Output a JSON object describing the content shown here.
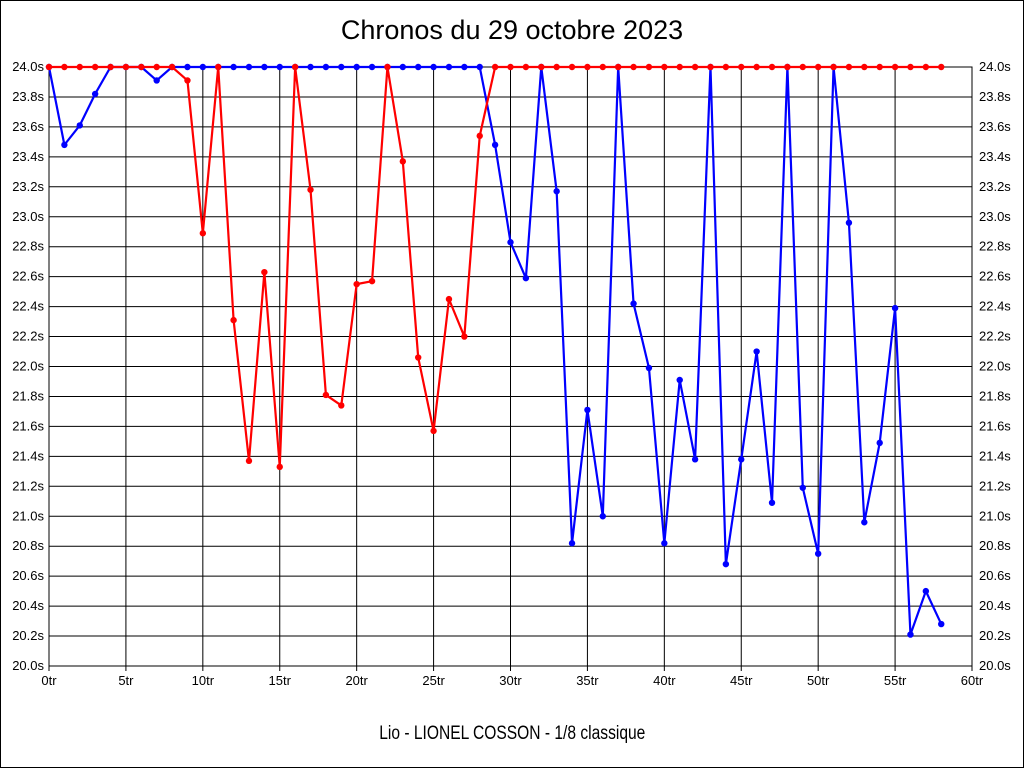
{
  "title": "Chronos du 29 octobre 2023",
  "footer": "Lio - LIONEL COSSON - 1/8 classique",
  "chart_data": {
    "type": "line",
    "title": "Chronos du 29 octobre 2023",
    "footer": "Lio - LIONEL COSSON - 1/8 classique",
    "xlabel": "tr",
    "ylabel": "s",
    "xlim": [
      0,
      60
    ],
    "ylim": [
      20.0,
      24.0
    ],
    "grid": true,
    "legend": "none",
    "x_tick_labels": [
      "0tr",
      "5tr",
      "10tr",
      "15tr",
      "20tr",
      "25tr",
      "30tr",
      "35tr",
      "40tr",
      "45tr",
      "50tr",
      "55tr",
      "60tr"
    ],
    "y_tick_labels": [
      "24.0s",
      "23.8s",
      "23.6s",
      "23.4s",
      "23.2s",
      "23.0s",
      "22.8s",
      "22.6s",
      "22.4s",
      "22.2s",
      "22.0s",
      "21.8s",
      "21.6s",
      "21.4s",
      "21.2s",
      "21.0s",
      "20.8s",
      "20.6s",
      "20.4s",
      "20.2s",
      "20.0s"
    ],
    "clip_max": 24.0,
    "x": [
      0,
      1,
      2,
      3,
      4,
      5,
      6,
      7,
      8,
      9,
      10,
      11,
      12,
      13,
      14,
      15,
      16,
      17,
      18,
      19,
      20,
      21,
      22,
      23,
      24,
      25,
      26,
      27,
      28,
      29,
      30,
      31,
      32,
      33,
      34,
      35,
      36,
      37,
      38,
      39,
      40,
      41,
      42,
      43,
      44,
      45,
      46,
      47,
      48,
      49,
      50,
      51,
      52,
      53,
      54,
      55,
      56,
      57,
      58
    ],
    "series": [
      {
        "name": "blue",
        "color": "#0000ff",
        "values": [
          24.0,
          23.48,
          23.61,
          23.82,
          24.0,
          24.0,
          24.0,
          23.91,
          24.0,
          24.0,
          24.0,
          24.0,
          24.0,
          24.0,
          24.0,
          24.0,
          24.0,
          24.0,
          24.0,
          24.0,
          24.0,
          24.0,
          24.0,
          24.0,
          24.0,
          24.0,
          24.0,
          24.0,
          24.0,
          23.48,
          22.83,
          22.59,
          24.0,
          23.17,
          20.82,
          21.71,
          21.0,
          24.0,
          22.42,
          21.99,
          20.82,
          21.91,
          21.38,
          24.0,
          20.68,
          21.38,
          22.1,
          21.09,
          24.0,
          21.19,
          20.75,
          24.0,
          22.96,
          20.96,
          21.49,
          22.39,
          20.21,
          20.5,
          20.28
        ]
      },
      {
        "name": "red",
        "color": "#ff0000",
        "values": [
          24.0,
          24.0,
          24.0,
          24.0,
          24.0,
          24.0,
          24.0,
          24.0,
          24.0,
          23.91,
          22.89,
          24.0,
          22.31,
          21.37,
          22.63,
          21.33,
          24.0,
          23.18,
          21.81,
          21.74,
          22.55,
          22.57,
          24.0,
          23.37,
          22.06,
          21.57,
          22.45,
          22.2,
          23.54,
          24.0,
          24.0,
          24.0,
          24.0,
          24.0,
          24.0,
          24.0,
          24.0,
          24.0,
          24.0,
          24.0,
          24.0,
          24.0,
          24.0,
          24.0,
          24.0,
          24.0,
          24.0,
          24.0,
          24.0,
          24.0,
          24.0,
          24.0,
          24.0,
          24.0,
          24.0,
          24.0,
          24.0,
          24.0,
          24.0
        ]
      }
    ]
  }
}
